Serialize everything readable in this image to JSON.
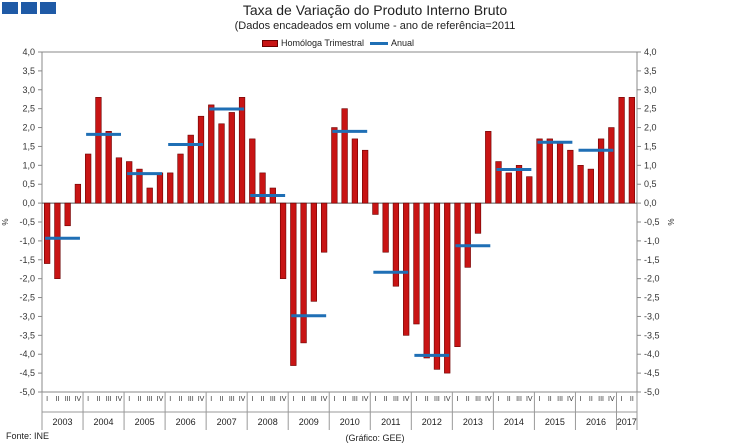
{
  "title": "Taxa de Variação do Produto Interno Bruto",
  "subtitle": "(Dados encadeados em volume - ano de referência=2011",
  "source": "Fonte: INE",
  "credit": "(Gráfico: GEE)",
  "colors": {
    "bar": "#c81414",
    "bar_edge": "#6b0000",
    "line": "#1f6fb5",
    "logo": "#1f5aa6"
  },
  "chart_data": {
    "type": "bar",
    "ylim": [
      -5.0,
      4.0
    ],
    "y_ticks": [
      "4,0",
      "3,5",
      "3,0",
      "2,5",
      "2,0",
      "1,5",
      "1,0",
      "0,5",
      "0,0",
      "-0,5",
      "-1,0",
      "-1,5",
      "-2,0",
      "-2,5",
      "-3,0",
      "-3,5",
      "-4,0",
      "-4,5",
      "-5,0"
    ],
    "ylabel_left": "%",
    "ylabel_right": "%",
    "quarter_labels": [
      "I",
      "II",
      "III",
      "IV"
    ],
    "years": [
      "2003",
      "2004",
      "2005",
      "2006",
      "2007",
      "2008",
      "2009",
      "2010",
      "2011",
      "2012",
      "2013",
      "2014",
      "2015",
      "2016",
      "2017"
    ],
    "legend": {
      "quarterly": "Homóloga Trimestral",
      "annual": "Anual"
    },
    "series": [
      {
        "name": "Homóloga Trimestral",
        "type": "bar",
        "values": [
          -1.6,
          -2.0,
          -0.6,
          0.5,
          1.3,
          2.8,
          1.9,
          1.2,
          1.1,
          0.9,
          0.4,
          0.8,
          0.8,
          1.3,
          1.8,
          2.3,
          2.6,
          2.1,
          2.4,
          2.8,
          1.7,
          0.8,
          0.4,
          -2.0,
          -4.3,
          -3.7,
          -2.6,
          -1.3,
          2.0,
          2.5,
          1.7,
          1.4,
          -0.3,
          -1.3,
          -2.2,
          -3.5,
          -3.2,
          -4.1,
          -4.4,
          -4.5,
          -3.8,
          -1.7,
          -0.8,
          1.9,
          1.1,
          0.8,
          1.0,
          0.7,
          1.7,
          1.7,
          1.6,
          1.4,
          1.0,
          0.9,
          1.7,
          2.0,
          2.8,
          2.8
        ]
      },
      {
        "name": "Anual",
        "type": "line",
        "values": [
          -0.93,
          1.82,
          0.78,
          1.55,
          2.49,
          0.2,
          -2.98,
          1.9,
          -1.83,
          -4.03,
          -1.13,
          0.89,
          1.61,
          1.4
        ]
      }
    ]
  }
}
